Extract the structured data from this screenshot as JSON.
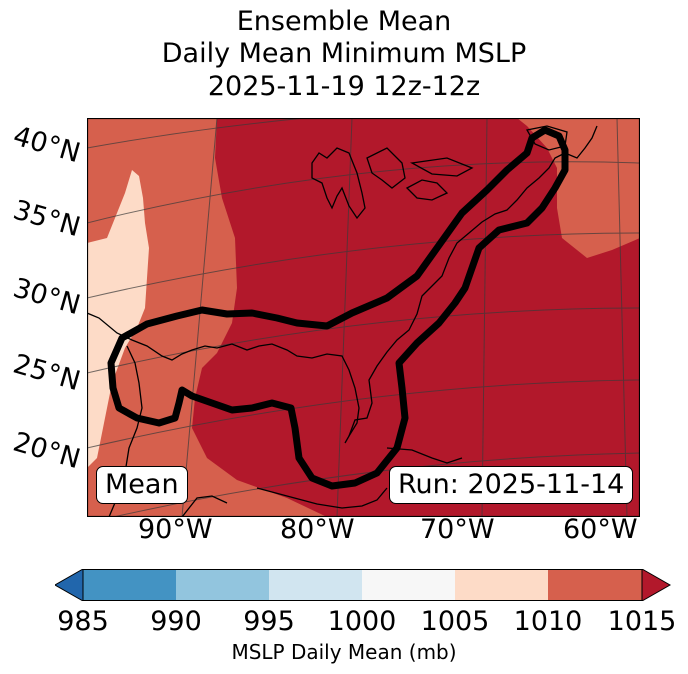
{
  "title": {
    "line1": "Ensemble Mean",
    "line2": "Daily Mean Minimum MSLP",
    "line3": "2025-11-19 12z-12z"
  },
  "map": {
    "lat_labels": [
      "40°N",
      "35°N",
      "30°N",
      "25°N",
      "20°N"
    ],
    "lon_labels": [
      "90°W",
      "80°W",
      "70°W",
      "60°W"
    ],
    "fill_colors": {
      "1005-1010": "#fddbc7",
      "1010-1015": "#d6604d",
      "above-1015": "#b2182b"
    },
    "contour_color": "#000000"
  },
  "inset": {
    "left": "Mean",
    "right": "Run: 2025-11-14"
  },
  "colorbar": {
    "ticks": [
      "985",
      "990",
      "995",
      "1000",
      "1005",
      "1010",
      "1015"
    ],
    "colors": [
      "#4393c3",
      "#92c5de",
      "#d1e5f0",
      "#f7f7f7",
      "#fddbc7",
      "#d6604d"
    ],
    "under_color": "#2166ac",
    "over_color": "#b2182b",
    "label": "MSLP Daily Mean (mb)"
  }
}
